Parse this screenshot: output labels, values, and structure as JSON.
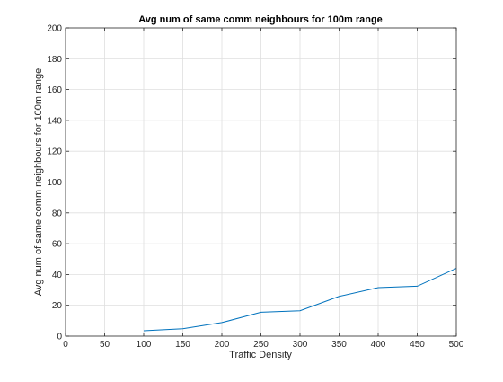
{
  "chart_data": {
    "type": "line",
    "title": "Avg num of same comm neighbours for 100m range",
    "xlabel": "Traffic Density",
    "ylabel": "Avg num of same comm neighbours for 100m range",
    "xlim": [
      0,
      500
    ],
    "ylim": [
      0,
      200
    ],
    "xticks": [
      "0",
      "50",
      "100",
      "150",
      "200",
      "250",
      "300",
      "350",
      "400",
      "450",
      "500"
    ],
    "yticks": [
      "0",
      "20",
      "40",
      "60",
      "80",
      "100",
      "120",
      "140",
      "160",
      "180",
      "200"
    ],
    "grid": true,
    "series": [
      {
        "x": [
          100,
          150,
          200,
          250,
          300,
          350,
          400,
          450,
          500
        ],
        "y": [
          3.5,
          4.8,
          8.8,
          15.5,
          16.5,
          25.8,
          31.5,
          32.4,
          44.0
        ]
      }
    ],
    "colors": {
      "line": "#0072BD",
      "grid": "#dfdfdf",
      "axis": "#262626"
    }
  }
}
